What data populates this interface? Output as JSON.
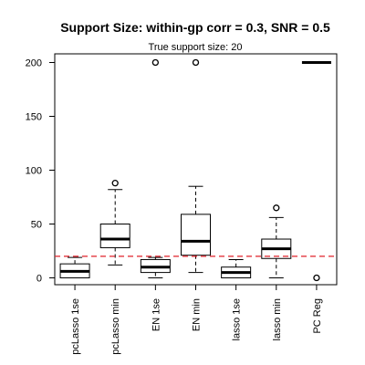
{
  "chart_data": {
    "type": "boxplot",
    "title": "Support Size: within-gp corr = 0.3, SNR = 0.5",
    "subtitle": "True support size: 20",
    "xlabel": "",
    "ylabel": "",
    "ylim": [
      -10,
      210
    ],
    "yticks": [
      0,
      50,
      100,
      150,
      200
    ],
    "grid": false,
    "reference_line": {
      "value": 20,
      "color": "#e0202a",
      "style": "dashed"
    },
    "categories": [
      "pcLasso 1se",
      "pcLasso min",
      "EN 1se",
      "EN min",
      "lasso 1se",
      "lasso min",
      "PC Reg"
    ],
    "boxes": [
      {
        "min": 0,
        "q1": 0,
        "median": 6,
        "q3": 13,
        "max": 19,
        "outliers": []
      },
      {
        "min": 12,
        "q1": 28,
        "median": 36,
        "q3": 50,
        "max": 82,
        "outliers": [
          88
        ]
      },
      {
        "min": 0,
        "q1": 5,
        "median": 10,
        "q3": 17,
        "max": 19,
        "outliers": [
          200
        ]
      },
      {
        "min": 5,
        "q1": 21,
        "median": 34,
        "q3": 59,
        "max": 85,
        "outliers": [
          200
        ]
      },
      {
        "min": 0,
        "q1": 0,
        "median": 5,
        "q3": 10,
        "max": 17,
        "outliers": []
      },
      {
        "min": 0,
        "q1": 18,
        "median": 27,
        "q3": 36,
        "max": 56,
        "outliers": [
          65
        ]
      },
      {
        "min": 200,
        "q1": 200,
        "median": 200,
        "q3": 200,
        "max": 200,
        "outliers": [
          0
        ]
      }
    ]
  }
}
